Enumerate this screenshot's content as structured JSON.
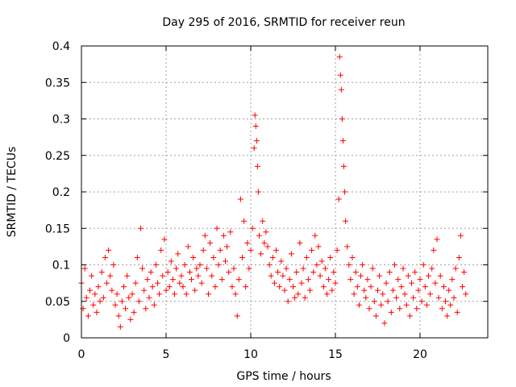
{
  "chart_data": {
    "type": "scatter",
    "title": "Day 295 of 2016, SRMTID for receiver reun",
    "xlabel": "GPS time / hours",
    "ylabel": "SRMTID / TECUs",
    "xlim": [
      0,
      24
    ],
    "ylim": [
      0,
      0.4
    ],
    "grid": true,
    "x_ticks": [
      0,
      5,
      10,
      15,
      20
    ],
    "x_tick_labels": [
      "0",
      "5",
      "10",
      "15",
      "20"
    ],
    "y_ticks": [
      0,
      0.05,
      0.1,
      0.15,
      0.2,
      0.25,
      0.3,
      0.35,
      0.4
    ],
    "y_tick_labels": [
      "0",
      "0.05",
      "0.1",
      "0.15",
      "0.2",
      "0.25",
      "0.3",
      "0.35",
      "0.4"
    ],
    "marker": "plus",
    "color": "#ff0000",
    "series": [
      {
        "name": "SRMTID",
        "points": [
          [
            0.0,
            0.075
          ],
          [
            0.1,
            0.04
          ],
          [
            0.2,
            0.095
          ],
          [
            0.3,
            0.055
          ],
          [
            0.4,
            0.03
          ],
          [
            0.5,
            0.065
          ],
          [
            0.6,
            0.085
          ],
          [
            0.7,
            0.045
          ],
          [
            0.8,
            0.06
          ],
          [
            0.9,
            0.035
          ],
          [
            1.0,
            0.07
          ],
          [
            1.1,
            0.05
          ],
          [
            1.2,
            0.09
          ],
          [
            1.3,
            0.055
          ],
          [
            1.4,
            0.11
          ],
          [
            1.5,
            0.075
          ],
          [
            1.6,
            0.12
          ],
          [
            1.7,
            0.085
          ],
          [
            1.8,
            0.065
          ],
          [
            1.9,
            0.1
          ],
          [
            2.0,
            0.045
          ],
          [
            2.1,
            0.06
          ],
          [
            2.2,
            0.03
          ],
          [
            2.3,
            0.015
          ],
          [
            2.4,
            0.05
          ],
          [
            2.5,
            0.07
          ],
          [
            2.6,
            0.04
          ],
          [
            2.7,
            0.085
          ],
          [
            2.8,
            0.055
          ],
          [
            2.9,
            0.025
          ],
          [
            3.0,
            0.06
          ],
          [
            3.1,
            0.035
          ],
          [
            3.2,
            0.075
          ],
          [
            3.3,
            0.11
          ],
          [
            3.4,
            0.05
          ],
          [
            3.5,
            0.15
          ],
          [
            3.6,
            0.095
          ],
          [
            3.7,
            0.065
          ],
          [
            3.8,
            0.04
          ],
          [
            3.9,
            0.08
          ],
          [
            4.0,
            0.055
          ],
          [
            4.1,
            0.09
          ],
          [
            4.2,
            0.07
          ],
          [
            4.3,
            0.045
          ],
          [
            4.4,
            0.1
          ],
          [
            4.5,
            0.075
          ],
          [
            4.6,
            0.06
          ],
          [
            4.7,
            0.12
          ],
          [
            4.8,
            0.085
          ],
          [
            4.9,
            0.135
          ],
          [
            5.0,
            0.065
          ],
          [
            5.1,
            0.09
          ],
          [
            5.2,
            0.07
          ],
          [
            5.3,
            0.105
          ],
          [
            5.4,
            0.08
          ],
          [
            5.5,
            0.06
          ],
          [
            5.6,
            0.095
          ],
          [
            5.7,
            0.115
          ],
          [
            5.8,
            0.075
          ],
          [
            5.9,
            0.085
          ],
          [
            6.0,
            0.07
          ],
          [
            6.1,
            0.1
          ],
          [
            6.2,
            0.06
          ],
          [
            6.3,
            0.125
          ],
          [
            6.4,
            0.09
          ],
          [
            6.5,
            0.08
          ],
          [
            6.6,
            0.11
          ],
          [
            6.7,
            0.065
          ],
          [
            6.8,
            0.095
          ],
          [
            6.9,
            0.085
          ],
          [
            7.0,
            0.1
          ],
          [
            7.1,
            0.075
          ],
          [
            7.2,
            0.12
          ],
          [
            7.3,
            0.14
          ],
          [
            7.4,
            0.095
          ],
          [
            7.5,
            0.06
          ],
          [
            7.6,
            0.13
          ],
          [
            7.7,
            0.085
          ],
          [
            7.8,
            0.11
          ],
          [
            7.9,
            0.07
          ],
          [
            8.0,
            0.15
          ],
          [
            8.1,
            0.1
          ],
          [
            8.2,
            0.12
          ],
          [
            8.3,
            0.08
          ],
          [
            8.4,
            0.14
          ],
          [
            8.5,
            0.105
          ],
          [
            8.6,
            0.125
          ],
          [
            8.7,
            0.09
          ],
          [
            8.8,
            0.145
          ],
          [
            8.9,
            0.07
          ],
          [
            9.0,
            0.095
          ],
          [
            9.1,
            0.06
          ],
          [
            9.2,
            0.03
          ],
          [
            9.3,
            0.08
          ],
          [
            9.4,
            0.19
          ],
          [
            9.5,
            0.11
          ],
          [
            9.6,
            0.16
          ],
          [
            9.7,
            0.07
          ],
          [
            9.8,
            0.13
          ],
          [
            9.9,
            0.095
          ],
          [
            10.0,
            0.12
          ],
          [
            10.1,
            0.15
          ],
          [
            10.2,
            0.26
          ],
          [
            10.25,
            0.305
          ],
          [
            10.3,
            0.29
          ],
          [
            10.35,
            0.27
          ],
          [
            10.4,
            0.235
          ],
          [
            10.45,
            0.2
          ],
          [
            10.5,
            0.14
          ],
          [
            10.6,
            0.115
          ],
          [
            10.7,
            0.16
          ],
          [
            10.8,
            0.13
          ],
          [
            10.9,
            0.145
          ],
          [
            11.0,
            0.125
          ],
          [
            11.1,
            0.1
          ],
          [
            11.2,
            0.085
          ],
          [
            11.3,
            0.11
          ],
          [
            11.4,
            0.075
          ],
          [
            11.5,
            0.12
          ],
          [
            11.6,
            0.09
          ],
          [
            11.7,
            0.07
          ],
          [
            11.8,
            0.105
          ],
          [
            11.9,
            0.085
          ],
          [
            12.0,
            0.065
          ],
          [
            12.1,
            0.095
          ],
          [
            12.2,
            0.05
          ],
          [
            12.3,
            0.08
          ],
          [
            12.4,
            0.115
          ],
          [
            12.5,
            0.07
          ],
          [
            12.6,
            0.055
          ],
          [
            12.7,
            0.09
          ],
          [
            12.8,
            0.06
          ],
          [
            12.9,
            0.13
          ],
          [
            13.0,
            0.075
          ],
          [
            13.1,
            0.095
          ],
          [
            13.2,
            0.055
          ],
          [
            13.3,
            0.11
          ],
          [
            13.4,
            0.08
          ],
          [
            13.5,
            0.065
          ],
          [
            13.6,
            0.12
          ],
          [
            13.7,
            0.09
          ],
          [
            13.8,
            0.14
          ],
          [
            13.9,
            0.1
          ],
          [
            14.0,
            0.125
          ],
          [
            14.1,
            0.085
          ],
          [
            14.2,
            0.105
          ],
          [
            14.3,
            0.07
          ],
          [
            14.4,
            0.095
          ],
          [
            14.5,
            0.06
          ],
          [
            14.6,
            0.08
          ],
          [
            14.7,
            0.11
          ],
          [
            14.8,
            0.065
          ],
          [
            14.9,
            0.09
          ],
          [
            15.0,
            0.075
          ],
          [
            15.1,
            0.12
          ],
          [
            15.2,
            0.19
          ],
          [
            15.25,
            0.385
          ],
          [
            15.3,
            0.36
          ],
          [
            15.35,
            0.34
          ],
          [
            15.4,
            0.3
          ],
          [
            15.45,
            0.27
          ],
          [
            15.5,
            0.235
          ],
          [
            15.55,
            0.2
          ],
          [
            15.6,
            0.16
          ],
          [
            15.7,
            0.125
          ],
          [
            15.8,
            0.1
          ],
          [
            15.9,
            0.08
          ],
          [
            16.0,
            0.11
          ],
          [
            16.1,
            0.06
          ],
          [
            16.2,
            0.09
          ],
          [
            16.3,
            0.07
          ],
          [
            16.4,
            0.045
          ],
          [
            16.5,
            0.085
          ],
          [
            16.6,
            0.1
          ],
          [
            16.7,
            0.065
          ],
          [
            16.8,
            0.055
          ],
          [
            16.9,
            0.08
          ],
          [
            17.0,
            0.04
          ],
          [
            17.1,
            0.07
          ],
          [
            17.2,
            0.095
          ],
          [
            17.3,
            0.05
          ],
          [
            17.4,
            0.03
          ],
          [
            17.5,
            0.065
          ],
          [
            17.6,
            0.085
          ],
          [
            17.7,
            0.045
          ],
          [
            17.8,
            0.06
          ],
          [
            17.9,
            0.02
          ],
          [
            18.0,
            0.075
          ],
          [
            18.1,
            0.05
          ],
          [
            18.2,
            0.09
          ],
          [
            18.3,
            0.035
          ],
          [
            18.4,
            0.065
          ],
          [
            18.5,
            0.1
          ],
          [
            18.6,
            0.055
          ],
          [
            18.7,
            0.08
          ],
          [
            18.8,
            0.04
          ],
          [
            18.9,
            0.07
          ],
          [
            19.0,
            0.095
          ],
          [
            19.1,
            0.06
          ],
          [
            19.2,
            0.045
          ],
          [
            19.3,
            0.085
          ],
          [
            19.4,
            0.03
          ],
          [
            19.5,
            0.075
          ],
          [
            19.6,
            0.055
          ],
          [
            19.7,
            0.09
          ],
          [
            19.8,
            0.04
          ],
          [
            19.9,
            0.065
          ],
          [
            20.0,
            0.08
          ],
          [
            20.1,
            0.05
          ],
          [
            20.2,
            0.1
          ],
          [
            20.3,
            0.07
          ],
          [
            20.4,
            0.045
          ],
          [
            20.5,
            0.085
          ],
          [
            20.6,
            0.06
          ],
          [
            20.7,
            0.095
          ],
          [
            20.8,
            0.12
          ],
          [
            20.9,
            0.075
          ],
          [
            21.0,
            0.135
          ],
          [
            21.1,
            0.055
          ],
          [
            21.2,
            0.085
          ],
          [
            21.3,
            0.04
          ],
          [
            21.4,
            0.07
          ],
          [
            21.5,
            0.05
          ],
          [
            21.6,
            0.03
          ],
          [
            21.7,
            0.065
          ],
          [
            21.8,
            0.045
          ],
          [
            21.9,
            0.08
          ],
          [
            22.0,
            0.055
          ],
          [
            22.1,
            0.095
          ],
          [
            22.2,
            0.035
          ],
          [
            22.3,
            0.11
          ],
          [
            22.4,
            0.14
          ],
          [
            22.5,
            0.07
          ],
          [
            22.6,
            0.09
          ],
          [
            22.7,
            0.06
          ]
        ]
      }
    ]
  }
}
